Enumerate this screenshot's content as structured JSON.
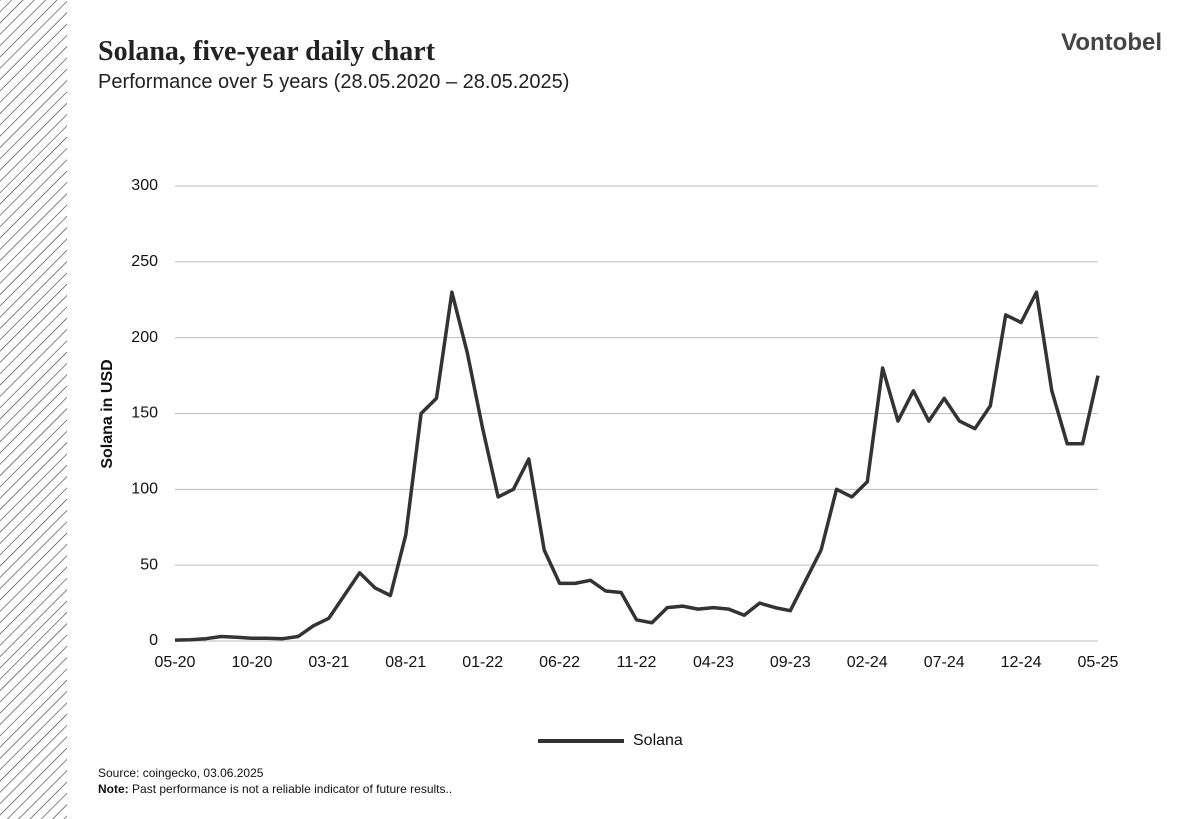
{
  "brand": "Vontobel",
  "source": "Source: coingecko, 03.06.2025",
  "note_label": "Note:",
  "note_text": "Past performance is not a reliable indicator of future results..",
  "chart_data": {
    "type": "line",
    "title": "Solana, five-year daily chart",
    "subtitle": "Performance over 5 years (28.05.2020 – 28.05.2025)",
    "y_label": "Solana in USD",
    "categories": [
      "05-20",
      null,
      null,
      null,
      null,
      "10-20",
      null,
      null,
      null,
      null,
      "03-21",
      null,
      null,
      null,
      null,
      "08-21",
      null,
      null,
      null,
      null,
      "01-22",
      null,
      null,
      null,
      null,
      "06-22",
      null,
      null,
      null,
      null,
      "11-22",
      null,
      null,
      null,
      null,
      "04-23",
      null,
      null,
      null,
      null,
      "09-23",
      null,
      null,
      null,
      null,
      "02-24",
      null,
      null,
      null,
      null,
      "07-24",
      null,
      null,
      null,
      null,
      "12-24",
      null,
      null,
      null,
      null,
      "05-25"
    ],
    "series": [
      {
        "name": "Solana",
        "color": "#333333",
        "values": [
          0.6,
          0.8,
          1.5,
          3,
          2.5,
          1.8,
          1.8,
          1.5,
          3,
          10,
          15,
          30,
          45,
          35,
          30,
          70,
          150,
          160,
          230,
          190,
          140,
          95,
          100,
          120,
          60,
          38,
          38,
          40,
          33,
          32,
          14,
          12,
          22,
          23,
          21,
          22,
          21,
          17,
          25,
          22,
          20,
          40,
          60,
          100,
          95,
          105,
          180,
          145,
          165,
          145,
          160,
          145,
          140,
          155,
          215,
          210,
          230,
          165,
          130,
          130,
          175
        ]
      }
    ],
    "ylim": [
      0,
      300
    ],
    "yticks": [
      0,
      50,
      100,
      150,
      200,
      250,
      300
    ],
    "grid": true,
    "legend": "bottom"
  }
}
